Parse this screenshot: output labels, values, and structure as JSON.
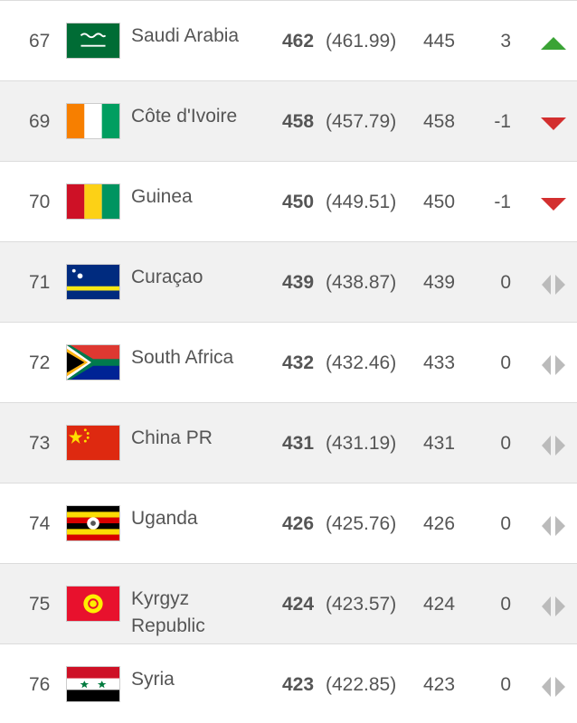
{
  "table": {
    "rows": [
      {
        "rank": 67,
        "country": "Saudi Arabia",
        "points": 462,
        "precise": "(461.99)",
        "previous": 445,
        "change": 3
      },
      {
        "rank": 69,
        "country": "Côte d'Ivoire",
        "points": 458,
        "precise": "(457.79)",
        "previous": 458,
        "change": -1
      },
      {
        "rank": 70,
        "country": "Guinea",
        "points": 450,
        "precise": "(449.51)",
        "previous": 450,
        "change": -1
      },
      {
        "rank": 71,
        "country": "Curaçao",
        "points": 439,
        "precise": "(438.87)",
        "previous": 439,
        "change": 0
      },
      {
        "rank": 72,
        "country": "South Africa",
        "points": 432,
        "precise": "(432.46)",
        "previous": 433,
        "change": 0
      },
      {
        "rank": 73,
        "country": "China PR",
        "points": 431,
        "precise": "(431.19)",
        "previous": 431,
        "change": 0
      },
      {
        "rank": 74,
        "country": "Uganda",
        "points": 426,
        "precise": "(425.76)",
        "previous": 426,
        "change": 0
      },
      {
        "rank": 75,
        "country": "Kyrgyz Republic",
        "points": 424,
        "precise": "(423.57)",
        "previous": 424,
        "change": 0
      },
      {
        "rank": 76,
        "country": "Syria",
        "points": 423,
        "precise": "(422.85)",
        "previous": 423,
        "change": 0
      }
    ]
  }
}
